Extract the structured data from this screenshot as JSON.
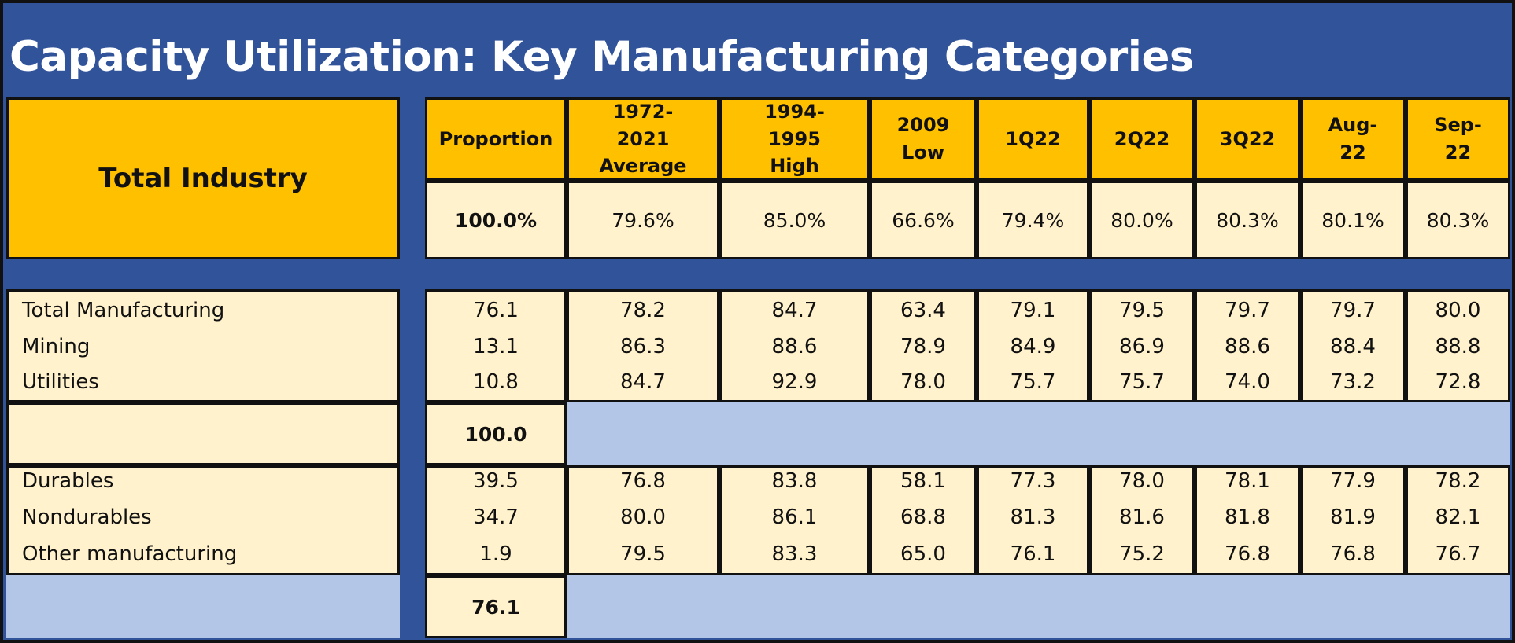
{
  "title": "Capacity Utilization: Key Manufacturing Categories",
  "colors": {
    "frame": "#31539a",
    "header_fill": "#ffc000",
    "cell_fill": "#fff2cc",
    "band_fill": "#b4c6e7"
  },
  "total_industry": {
    "label": "Total Industry",
    "headers": [
      "Proportion",
      "1972-2021 Average",
      "1994-1995 High",
      "2009 Low",
      "1Q22",
      "2Q22",
      "3Q22",
      "Aug-22",
      "Sep-22"
    ],
    "values": [
      "100.0%",
      "79.6%",
      "85.0%",
      "66.6%",
      "79.4%",
      "80.0%",
      "80.3%",
      "80.1%",
      "80.3%"
    ]
  },
  "sector_rows": [
    {
      "label": "Total Manufacturing",
      "values": [
        "76.1",
        "78.2",
        "84.7",
        "63.4",
        "79.1",
        "79.5",
        "79.7",
        "79.7",
        "80.0"
      ]
    },
    {
      "label": "Mining",
      "values": [
        "13.1",
        "86.3",
        "88.6",
        "78.9",
        "84.9",
        "86.9",
        "88.6",
        "88.4",
        "88.8"
      ]
    },
    {
      "label": "Utilities",
      "values": [
        "10.8",
        "84.7",
        "92.9",
        "78.0",
        "75.7",
        "75.7",
        "74.0",
        "73.2",
        "72.8"
      ]
    }
  ],
  "sector_total": "100.0",
  "manufacturing_rows": [
    {
      "label": "Durables",
      "values": [
        "39.5",
        "76.8",
        "83.8",
        "58.1",
        "77.3",
        "78.0",
        "78.1",
        "77.9",
        "78.2"
      ]
    },
    {
      "label": "Nondurables",
      "values": [
        "34.7",
        "80.0",
        "86.1",
        "68.8",
        "81.3",
        "81.6",
        "81.8",
        "81.9",
        "82.1"
      ]
    },
    {
      "label": "Other manufacturing",
      "values": [
        "1.9",
        "79.5",
        "83.3",
        "65.0",
        "76.1",
        "75.2",
        "76.8",
        "76.8",
        "76.7"
      ]
    }
  ],
  "manufacturing_total": "76.1"
}
